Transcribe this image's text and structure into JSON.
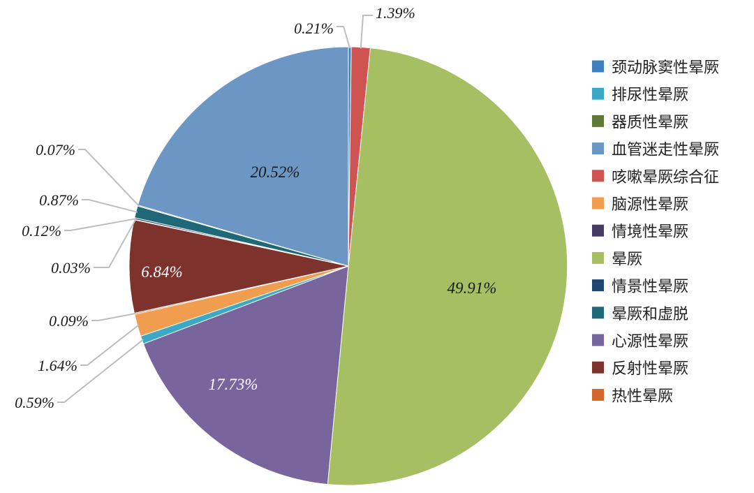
{
  "chart_data": {
    "type": "pie",
    "legend_position": "right",
    "slices": [
      {
        "name": "颈动脉窦性晕厥",
        "label": "0.21%",
        "value": 0.21,
        "color": "#3f7fbf"
      },
      {
        "name": "咳嗽晕厥综合征",
        "label": "1.39%",
        "value": 1.39,
        "color": "#cf5350"
      },
      {
        "name": "晕厥",
        "label": "49.91%",
        "value": 49.91,
        "color": "#a5bf62"
      },
      {
        "name": "心源性晕厥",
        "label": "17.73%",
        "value": 17.73,
        "color": "#78659e"
      },
      {
        "name": "排尿性晕厥",
        "label": "0.59%",
        "value": 0.59,
        "color": "#3ba9c6"
      },
      {
        "name": "脑源性晕厥",
        "label": "1.64%",
        "value": 1.64,
        "color": "#f19d4f"
      },
      {
        "name": "热性晕厥",
        "label": "0.09%",
        "value": 0.09,
        "color": "#d3662a"
      },
      {
        "name": "反射性晕厥",
        "label": "6.84%",
        "value": 6.84,
        "color": "#7d322c"
      },
      {
        "name": "情境性晕厥",
        "label": "0.03%",
        "value": 0.03,
        "color": "#463b62"
      },
      {
        "name": "情景性晕厥",
        "label": "0.12%",
        "value": 0.12,
        "color": "#22476e"
      },
      {
        "name": "晕厥和虚脱",
        "label": "0.87%",
        "value": 0.87,
        "color": "#1f6878"
      },
      {
        "name": "器质性晕厥",
        "label": "0.07%",
        "value": 0.07,
        "color": "#607a35"
      },
      {
        "name": "血管迷走性晕厥",
        "label": "20.52%",
        "value": 20.52,
        "color": "#6c97c4"
      }
    ],
    "legend": [
      {
        "name": "颈动脉窦性晕厥",
        "color": "#3f7fbf"
      },
      {
        "name": "排尿性晕厥",
        "color": "#3ba9c6"
      },
      {
        "name": "器质性晕厥",
        "color": "#607a35"
      },
      {
        "name": "血管迷走性晕厥",
        "color": "#6c97c4"
      },
      {
        "name": "咳嗽晕厥综合征",
        "color": "#cf5350"
      },
      {
        "name": "脑源性晕厥",
        "color": "#f19d4f"
      },
      {
        "name": "情境性晕厥",
        "color": "#463b62"
      },
      {
        "name": "晕厥",
        "color": "#a5bf62"
      },
      {
        "name": "情景性晕厥",
        "color": "#22476e"
      },
      {
        "name": "晕厥和虚脱",
        "color": "#1f6878"
      },
      {
        "name": "心源性晕厥",
        "color": "#78659e"
      },
      {
        "name": "反射性晕厥",
        "color": "#7d322c"
      },
      {
        "name": "热性晕厥",
        "color": "#d3662a"
      }
    ]
  }
}
